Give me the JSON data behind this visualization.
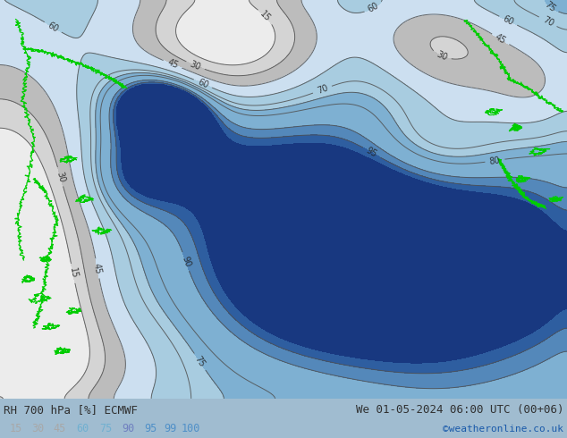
{
  "title_left": "RH 700 hPa [%] ECMWF",
  "title_right": "We 01-05-2024 06:00 UTC (00+06)",
  "credit": "©weatheronline.co.uk",
  "colorbar_labels": [
    "15",
    "30",
    "45",
    "60",
    "75",
    "90",
    "95",
    "99",
    "100"
  ],
  "colorbar_text_colors": [
    "#a8a8a8",
    "#a8a8a8",
    "#a8a8a8",
    "#70b0d0",
    "#70b0d0",
    "#7080c0",
    "#5090c8",
    "#5090c8",
    "#5090c8"
  ],
  "levels": [
    0,
    15,
    30,
    45,
    60,
    75,
    90,
    95,
    99,
    101
  ],
  "fill_colors": [
    "#e8e8e8",
    "#d0d0d0",
    "#c0c0c0",
    "#d0e4f0",
    "#aaccdf",
    "#80b0d0",
    "#5888b8",
    "#3060a0",
    "#1840808"
  ],
  "fill_colors_fixed": [
    "#ececec",
    "#d4d4d4",
    "#bcbcbc",
    "#ccdff0",
    "#a8cce0",
    "#7eb0d2",
    "#5488ba",
    "#2e5ea0",
    "#183880"
  ],
  "coast_color": "#00cc00",
  "contour_color": "#505050",
  "fig_bg": "#a0bcd0",
  "bottom_bar_bg": "#ffffff",
  "label_color": "#303030",
  "credit_color": "#1a5aaa"
}
